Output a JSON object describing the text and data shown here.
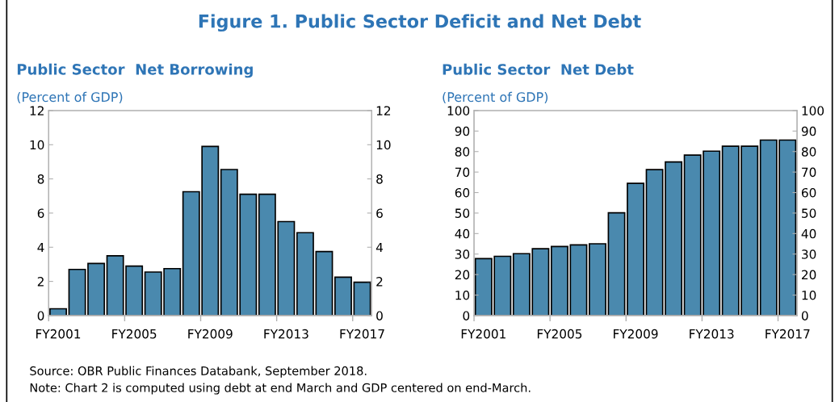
{
  "chart_data": [
    {
      "type": "bar",
      "title": "Public Sector  Net Borrowing",
      "subtitle": "(Percent of GDP)",
      "categories": [
        "FY2001",
        null,
        null,
        null,
        "FY2005",
        null,
        null,
        null,
        "FY2009",
        null,
        null,
        null,
        "FY2013",
        null,
        null,
        null,
        "FY2017"
      ],
      "values": [
        0.4,
        2.7,
        3.05,
        3.5,
        2.9,
        2.55,
        2.75,
        7.25,
        9.9,
        8.55,
        7.1,
        7.1,
        5.5,
        4.85,
        3.75,
        2.25,
        1.95
      ],
      "color": "#4a89ae",
      "ylim": [
        0,
        12
      ],
      "yticks": [
        0,
        2,
        4,
        6,
        8,
        10,
        12
      ],
      "y2lim": [
        0,
        12
      ],
      "y2ticks": [
        0,
        2,
        4,
        6,
        8,
        10,
        12
      ],
      "grid": false,
      "annotations": [
        "Figure 1. Public Sector Deficit and Net Debt",
        "Source: OBR Public Finances Databank, September 2018.",
        "Note: Chart 2 is computed using debt at end March and GDP centered on end-March."
      ]
    },
    {
      "type": "bar",
      "title": "Public Sector  Net Debt",
      "subtitle": "(Percent of GDP)",
      "categories": [
        "FY2001",
        null,
        null,
        null,
        "FY2005",
        null,
        null,
        null,
        "FY2009",
        null,
        null,
        null,
        "FY2013",
        null,
        null,
        null,
        "FY2017"
      ],
      "values": [
        27.8,
        28.9,
        30.2,
        32.6,
        33.7,
        34.5,
        35.0,
        50.1,
        64.5,
        71.2,
        74.9,
        78.3,
        80.2,
        82.6,
        82.6,
        85.6,
        85.6
      ],
      "color": "#4a89ae",
      "ylim": [
        0,
        100
      ],
      "yticks": [
        0,
        10,
        20,
        30,
        40,
        50,
        60,
        70,
        80,
        90,
        100
      ],
      "y2lim": [
        0,
        100
      ],
      "y2ticks": [
        0,
        10,
        20,
        30,
        40,
        50,
        60,
        70,
        80,
        90,
        100
      ],
      "grid": false
    }
  ]
}
